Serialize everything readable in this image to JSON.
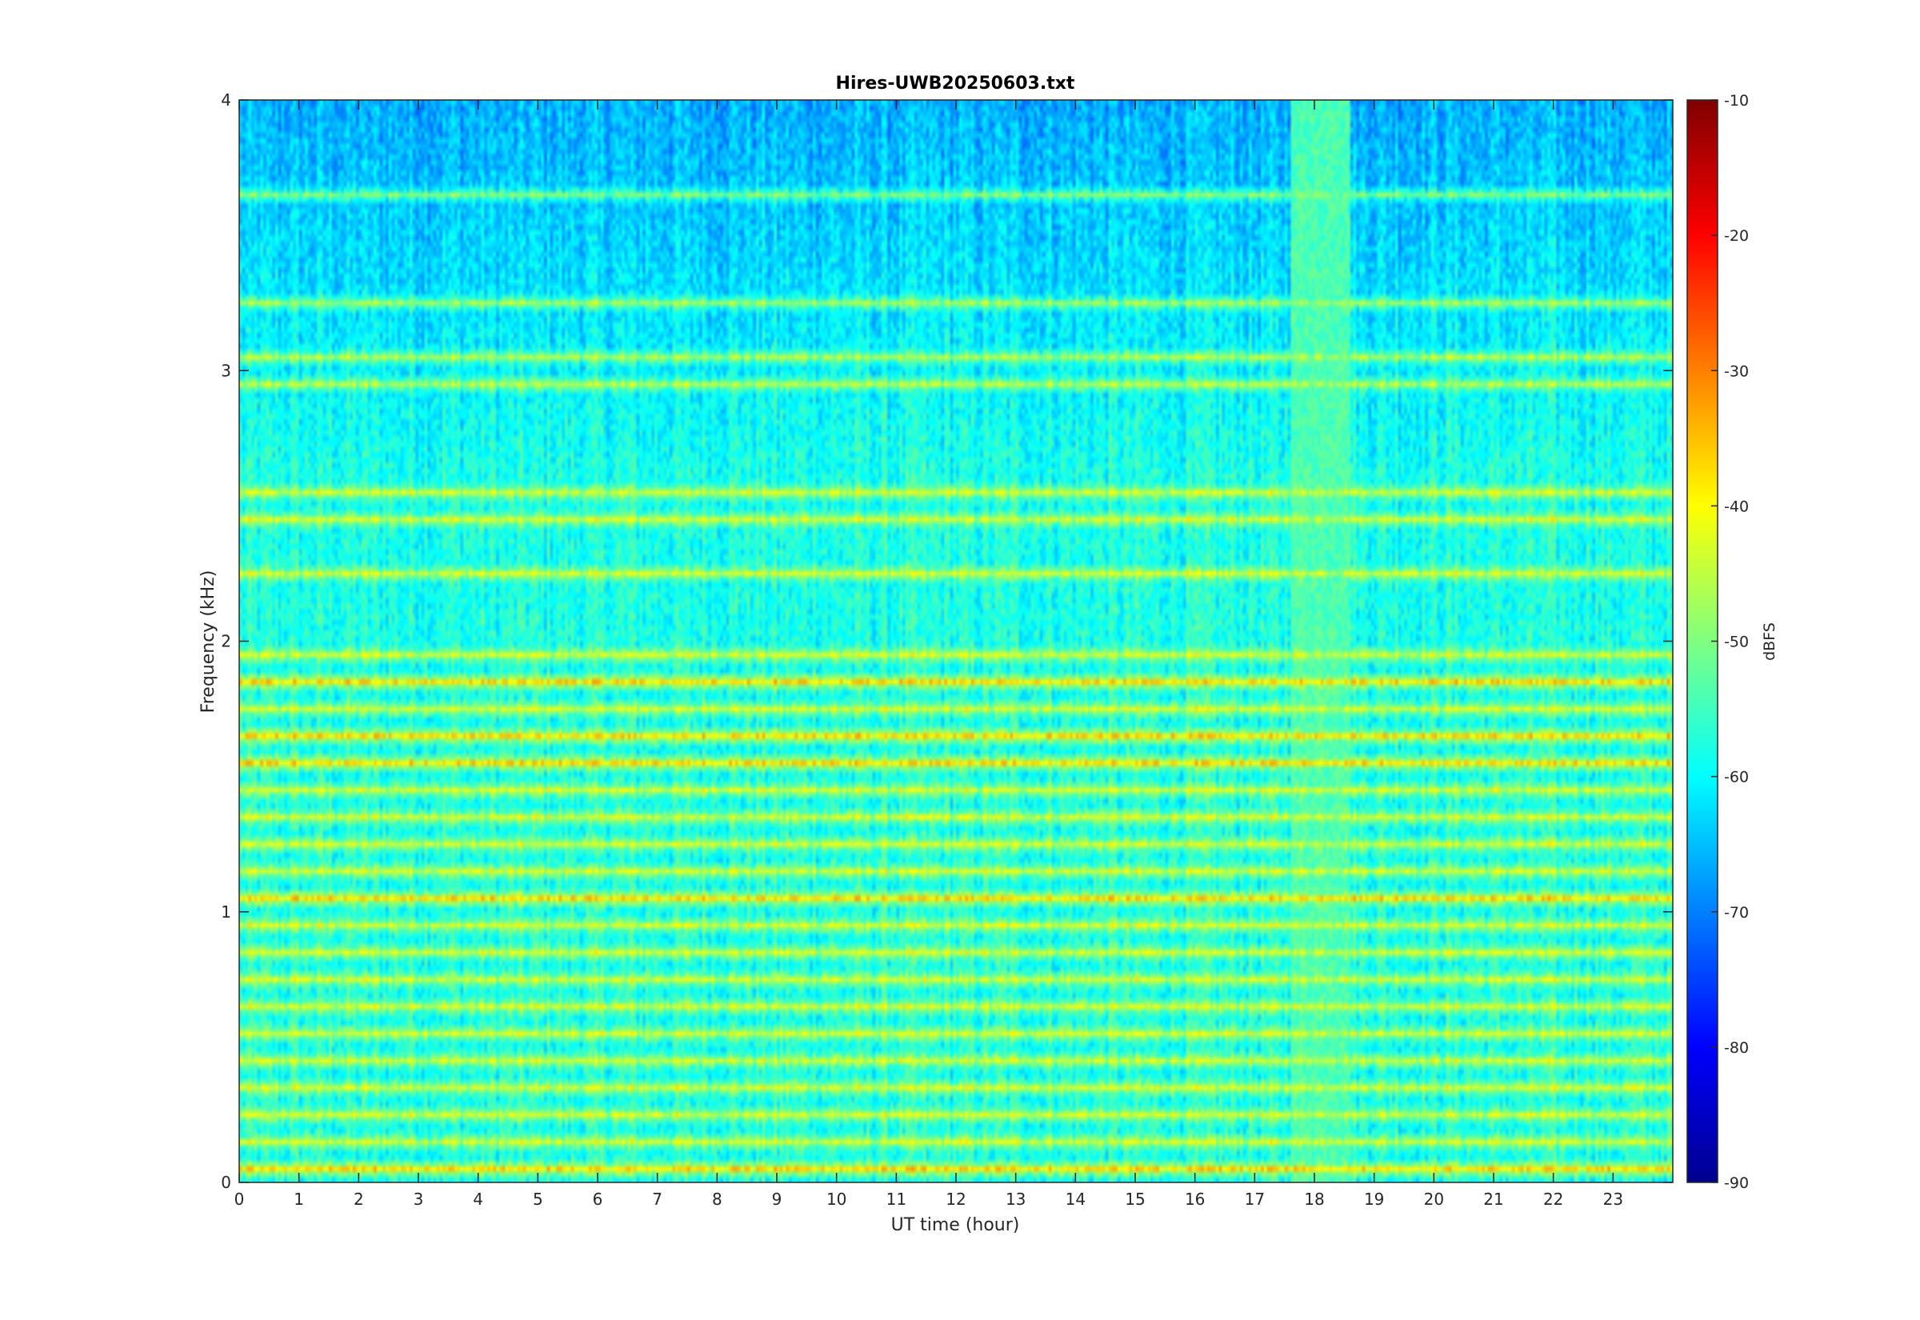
{
  "chart_data": {
    "type": "heatmap",
    "title": "Hires-UWB20250603.txt",
    "xlabel": "UT time (hour)",
    "ylabel": "Frequency (kHz)",
    "xlim": [
      0,
      24
    ],
    "ylim": [
      0,
      4
    ],
    "x_ticks": [
      "0",
      "1",
      "2",
      "3",
      "4",
      "5",
      "6",
      "7",
      "8",
      "9",
      "10",
      "11",
      "12",
      "13",
      "14",
      "15",
      "16",
      "17",
      "18",
      "19",
      "20",
      "21",
      "22",
      "23"
    ],
    "y_ticks": [
      "0",
      "1",
      "2",
      "3",
      "4"
    ],
    "colorbar": {
      "label": "dBFS",
      "range": [
        -90,
        -10
      ],
      "ticks": [
        "-10",
        "-20",
        "-30",
        "-40",
        "-50",
        "-60",
        "-70",
        "-80",
        "-90"
      ],
      "colormap": "jet"
    },
    "colormap_colors": [
      "#00008f",
      "#0000ff",
      "#00ffff",
      "#ffff00",
      "#ff0000",
      "#800000"
    ],
    "grid": false,
    "features": {
      "horizontal_bands_khz": [
        0.05,
        0.15,
        0.25,
        0.35,
        0.45,
        0.55,
        0.65,
        0.75,
        0.85,
        0.95,
        1.05,
        1.15,
        1.25,
        1.35,
        1.45,
        1.55,
        1.65,
        1.75,
        1.85,
        1.95,
        2.25,
        2.45,
        2.55,
        2.95,
        3.05,
        3.25,
        3.65
      ],
      "strong_band_khz": [
        0.05,
        1.05,
        1.55,
        1.65,
        1.85
      ],
      "broadband_interference_hours": [
        17.6,
        18.6
      ],
      "typical_level_dbfs": -58,
      "band_level_dbfs": -42
    }
  }
}
